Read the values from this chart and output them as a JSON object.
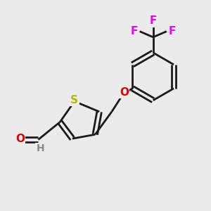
{
  "background_color": "#ebebeb",
  "bond_color": "#1a1a1a",
  "S_color": "#b8b800",
  "O_color": "#dd0000",
  "F_color": "#ee00ee",
  "H_color": "#888888",
  "line_width": 2.0,
  "figsize": [
    3.0,
    3.0
  ],
  "dpi": 100,
  "xlim": [
    0,
    10
  ],
  "ylim": [
    0,
    10
  ]
}
